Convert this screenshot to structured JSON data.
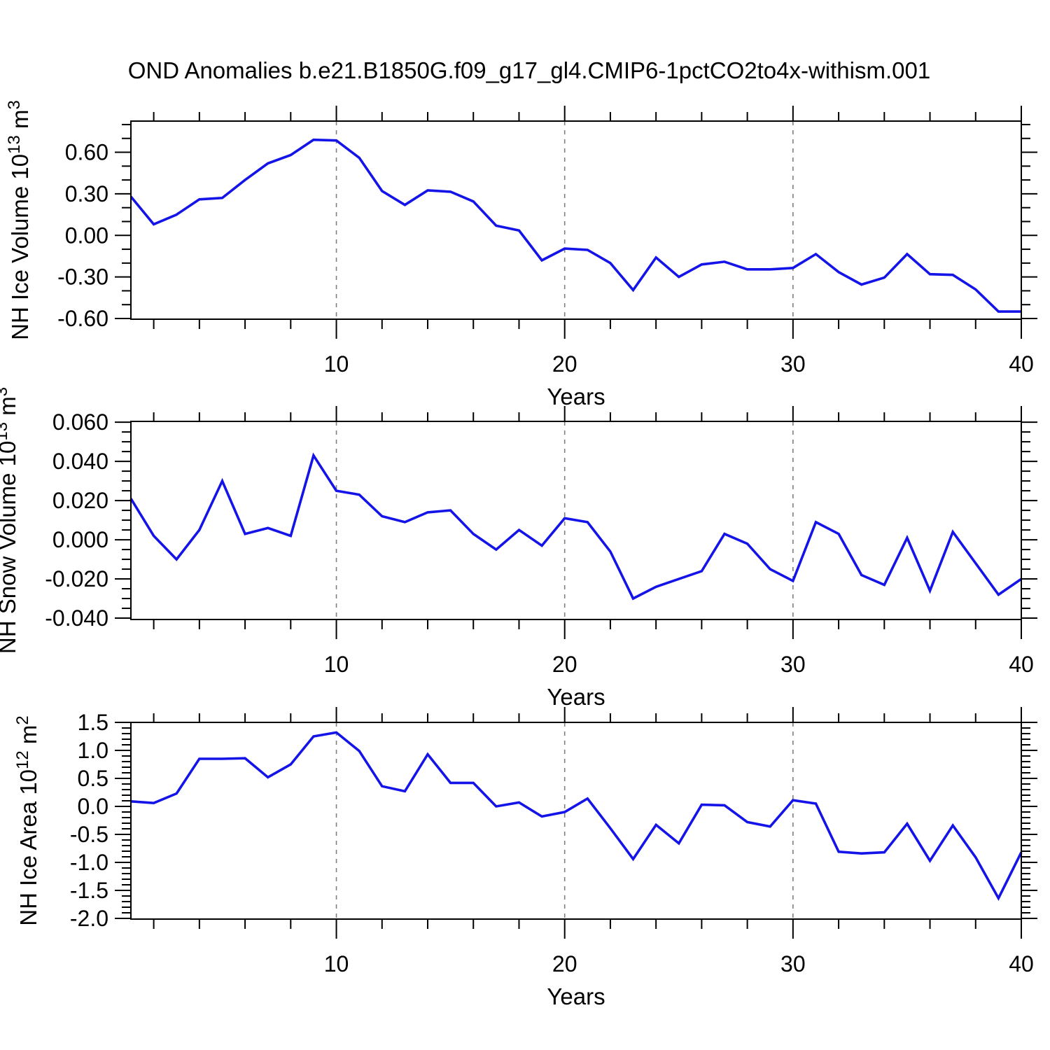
{
  "title": "OND Anomalies b.e21.B1850G.f09_g17_gl4.CMIP6-1pctCO2to4x-withism.001",
  "colors": {
    "line": "#1414E8",
    "grid": "#7F7F7F",
    "axis": "#000000",
    "text": "#000000"
  },
  "x_axis": {
    "label": "Years",
    "range": [
      1,
      40
    ],
    "major_ticks": [
      10,
      20,
      30,
      40
    ],
    "tick_labels": [
      "10",
      "20",
      "30",
      "40"
    ],
    "minor_step": 2,
    "grid_years": [
      10,
      20,
      30
    ]
  },
  "chart_data": [
    {
      "type": "line",
      "name": "nh-ice-volume",
      "ylabel": "NH Ice Volume 10^13 m^3",
      "ylabel_segments": [
        {
          "text": "NH Ice Volume 10"
        },
        {
          "text": "13",
          "sup": true
        },
        {
          "text": " m"
        },
        {
          "text": "3",
          "sup": true
        }
      ],
      "ylim": [
        -0.605,
        0.825
      ],
      "y_ticks": {
        "labels": [
          "0.60",
          "0.30",
          "0.00",
          "-0.30",
          "-0.60"
        ],
        "values": [
          0.6,
          0.3,
          0.0,
          -0.3,
          -0.6
        ],
        "minor_step": 0.1
      },
      "x": [
        1,
        2,
        3,
        4,
        5,
        6,
        7,
        8,
        9,
        10,
        11,
        12,
        13,
        14,
        15,
        16,
        17,
        18,
        19,
        20,
        21,
        22,
        23,
        24,
        25,
        26,
        27,
        28,
        29,
        30,
        31,
        32,
        33,
        34,
        35,
        36,
        37,
        38,
        39,
        40
      ],
      "values": [
        0.28,
        0.08,
        0.15,
        0.26,
        0.27,
        0.4,
        0.52,
        0.58,
        0.69,
        0.685,
        0.56,
        0.32,
        0.22,
        0.325,
        0.315,
        0.245,
        0.07,
        0.035,
        -0.18,
        -0.095,
        -0.105,
        -0.2,
        -0.395,
        -0.16,
        -0.3,
        -0.21,
        -0.19,
        -0.245,
        -0.245,
        -0.235,
        -0.135,
        -0.265,
        -0.355,
        -0.305,
        -0.135,
        -0.28,
        -0.285,
        -0.39,
        -0.55,
        -0.55
      ]
    },
    {
      "type": "line",
      "name": "nh-snow-volume",
      "ylabel": "NH Snow Volume 10^13 m^3",
      "ylabel_segments": [
        {
          "text": "NH Snow Volume 10"
        },
        {
          "text": "13",
          "sup": true
        },
        {
          "text": " m"
        },
        {
          "text": "3",
          "sup": true
        }
      ],
      "ylim": [
        -0.0407,
        0.0604
      ],
      "y_ticks": {
        "labels": [
          "0.060",
          "0.040",
          "0.020",
          "0.000",
          "-0.020",
          "-0.040"
        ],
        "values": [
          0.06,
          0.04,
          0.02,
          0.0,
          -0.02,
          -0.04
        ],
        "minor_step": 0.005
      },
      "x": [
        1,
        2,
        3,
        4,
        5,
        6,
        7,
        8,
        9,
        10,
        11,
        12,
        13,
        14,
        15,
        16,
        17,
        18,
        19,
        20,
        21,
        22,
        23,
        24,
        25,
        26,
        27,
        28,
        29,
        30,
        31,
        32,
        33,
        34,
        35,
        36,
        37,
        38,
        39,
        40
      ],
      "values": [
        0.021,
        0.002,
        -0.01,
        0.005,
        0.03,
        0.003,
        0.006,
        0.002,
        0.043,
        0.025,
        0.023,
        0.012,
        0.009,
        0.014,
        0.015,
        0.003,
        -0.005,
        0.005,
        -0.003,
        0.011,
        0.009,
        -0.006,
        -0.03,
        -0.024,
        -0.02,
        -0.016,
        0.003,
        -0.002,
        -0.015,
        -0.021,
        0.009,
        0.003,
        -0.018,
        -0.023,
        0.001,
        -0.026,
        0.004,
        -0.012,
        -0.028,
        -0.02
      ]
    },
    {
      "type": "line",
      "name": "nh-ice-area",
      "ylabel": "NH Ice Area 10^12 m^2",
      "ylabel_segments": [
        {
          "text": "NH Ice Area 10"
        },
        {
          "text": "12",
          "sup": true
        },
        {
          "text": " m"
        },
        {
          "text": "2",
          "sup": true
        }
      ],
      "ylim": [
        -2.0125,
        1.5
      ],
      "y_ticks": {
        "labels": [
          "1.5",
          "1.0",
          "0.5",
          "0.0",
          "-0.5",
          "-1.0",
          "-1.5",
          "-2.0"
        ],
        "values": [
          1.5,
          1.0,
          0.5,
          0.0,
          -0.5,
          -1.0,
          -1.5,
          -2.0
        ],
        "minor_step": 0.1
      },
      "x": [
        1,
        2,
        3,
        4,
        5,
        6,
        7,
        8,
        9,
        10,
        11,
        12,
        13,
        14,
        15,
        16,
        17,
        18,
        19,
        20,
        21,
        22,
        23,
        24,
        25,
        26,
        27,
        28,
        29,
        30,
        31,
        32,
        33,
        34,
        35,
        36,
        37,
        38,
        39,
        40
      ],
      "values": [
        0.09,
        0.06,
        0.23,
        0.85,
        0.85,
        0.86,
        0.52,
        0.75,
        1.25,
        1.32,
        0.99,
        0.36,
        0.27,
        0.93,
        0.42,
        0.42,
        0.0,
        0.07,
        -0.18,
        -0.1,
        0.14,
        -0.39,
        -0.94,
        -0.33,
        -0.66,
        0.03,
        0.02,
        -0.28,
        -0.36,
        0.11,
        0.05,
        -0.81,
        -0.84,
        -0.82,
        -0.31,
        -0.97,
        -0.34,
        -0.91,
        -1.64,
        -0.82
      ]
    }
  ]
}
